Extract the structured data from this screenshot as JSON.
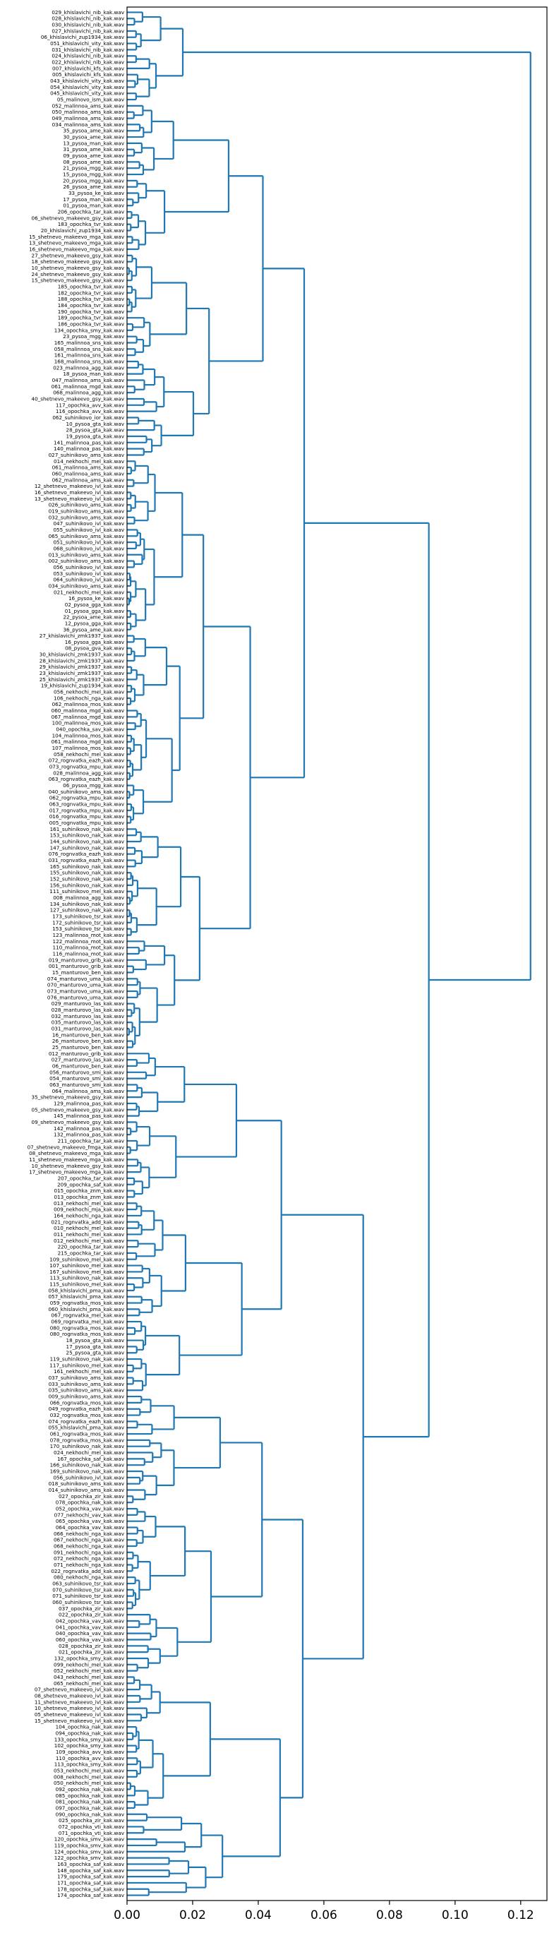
{
  "chart_data": {
    "type": "dendrogram",
    "orientation": "horizontal",
    "xlim": [
      0,
      0.128
    ],
    "xticks": [
      "0.00",
      "0.02",
      "0.04",
      "0.06",
      "0.08",
      "0.10",
      "0.12"
    ],
    "tick_values": [
      0,
      0.02,
      0.04,
      0.06,
      0.08,
      0.1,
      0.12
    ],
    "color": "#1f77b4",
    "leaves": [
      "029_khislavichi_nib_kak.wav",
      "028_khislavichi_nib_kak.wav",
      "030_khislavichi_nib_kak.wav",
      "027_khislavichi_nib_kak.wav",
      "06_khislavichi_zup1934_kak.wav",
      "051_khislavichi_vity_kak.wav",
      "031_khislavichi_nib_kak.wav",
      "024_khislavichi_nib_kak.wav",
      "022_khislavichi_nib_kak.wav",
      "007_khislavichi_kfs_kak.wav",
      "005_khislavichi_kfs_kak.wav",
      "043_khislavichi_vity_kak.wav",
      "054_khislavichi_vity_kak.wav",
      "045_khislavichi_vity_kak.wav",
      "05_malinovo_ism_kak.wav",
      "052_malinnoa_ams_kak.wav",
      "050_malinnoa_ams_kak.wav",
      "049_malinnoa_ams_kak.wav",
      "034_malinnoa_ams_kak.wav",
      "35_pysoa_ame_kak.wav",
      "30_pysoa_ame_kak.wav",
      "13_pysoa_man_kak.wav",
      "31_pysoa_ame_kak.wav",
      "09_pysoa_ame_kak.wav",
      "08_pysoa_ame_kak.wav",
      "21_pysoa_mgg_kak.wav",
      "15_pysoa_mgg_kak.wav",
      "20_pysoa_mgg_kak.wav",
      "26_pysoa_ame_kak.wav",
      "33_pysoa_ke_kak.wav",
      "17_pysoa_man_kak.wav",
      "01_pysoa_man_kak.wav",
      "206_opochka_tar_kak.wav",
      "06_shetnevo_makeevo_gsy_kak.wav",
      "183_opochka_tvr_kak.wav",
      "20_khislavichi_zup1934_kak.wav",
      "15_shetnevo_makeevo_mga_kak.wav",
      "13_shetnevo_makeevo_mga_kak.wav",
      "16_shetnevo_makeevo_mga_kak.wav",
      "27_shetnevo_makeevo_gsy_kak.wav",
      "18_shetnevo_makeevo_gsy_kak.wav",
      "10_shetnevo_makeevo_gsy_kak.wav",
      "24_shetnevo_makeevo_gsy_kak.wav",
      "15_shetnevo_makeevo_gsy_kak.wav",
      "185_opochka_tvr_kak.wav",
      "182_opochka_tvr_kak.wav",
      "188_opochka_tvr_kak.wav",
      "184_opochka_tvr_kak.wav",
      "190_opochka_tvr_kak.wav",
      "189_opochka_tvr_kak.wav",
      "186_opochka_tvr_kak.wav",
      "134_opochka_smy_kak.wav",
      "23_pysoa_mgg_kak.wav",
      "165_malinnoa_sns_kak.wav",
      "058_malinnoa_sns_kak.wav",
      "161_malinnoa_sns_kak.wav",
      "168_malinnoa_sns_kak.wav",
      "023_malinnoa_agg_kak.wav",
      "18_pysoa_man_kak.wav",
      "047_malinnoa_ams_kak.wav",
      "061_malinnoa_mgd_kak.wav",
      "068_malinnoa_agg_kak.wav",
      "40_shetnevo_makeevo_gsy_kak.wav",
      "117_opochka_avv_kak.wav",
      "116_opochka_avv_kak.wav",
      "062_suhinikovo_ior_kak.wav",
      "10_pysoa_gta_kak.wav",
      "28_pysoa_gta_kak.wav",
      "19_pysoa_gta_kak.wav",
      "141_malinnoa_pas_kak.wav",
      "140_malinnoa_pas_kak.wav",
      "027_suhinikovo_ams_kak.wav",
      "014_nekhochi_mel_kak.wav",
      "061_malinnoa_ams_kak.wav",
      "060_malinnoa_ams_kak.wav",
      "062_malinnoa_ams_kak.wav",
      "12_shetnevo_makeevo_ivl_kak.wav",
      "16_shetnevo_makeevo_ivl_kak.wav",
      "13_shetnevo_makeevo_ivl_kak.wav",
      "026_suhinikovo_ams_kak.wav",
      "019_suhinikovo_ams_kak.wav",
      "032_suhinikovo_ams_kak.wav",
      "047_suhinikovo_ivl_kak.wav",
      "055_suhinikovo_ivl_kak.wav",
      "065_suhinikovo_ams_kak.wav",
      "051_suhinikovo_ivl_kak.wav",
      "068_suhinikovo_ivl_kak.wav",
      "013_suhinikovo_ams_kak.wav",
      "002_suhinikovo_ams_kak.wav",
      "056_suhinikovo_ivl_kak.wav",
      "053_suhinikovo_ivl_kak.wav",
      "064_suhinikovo_ivl_kak.wav",
      "034_suhinikovo_ams_kak.wav",
      "021_nekhochi_mel_kak.wav",
      "16_pysoa_ke_kak.wav",
      "02_pysoa_gga_kak.wav",
      "01_pysoa_gga_kak.wav",
      "22_pysoa_ame_kak.wav",
      "12_pysoa_gga_kak.wav",
      "36_pysoa_ame_kak.wav",
      "27_khislavichi_zmk1937_kak.wav",
      "16_pysoa_gga_kak.wav",
      "08_pysoa_gva_kak.wav",
      "30_khislavichi_zmk1937_kak.wav",
      "28_khislavichi_zmk1937_kak.wav",
      "29_khislavichi_zmk1937_kak.wav",
      "23_khislavichi_zmk1937_kak.wav",
      "25_khislavichi_zmk1937_kak.wav",
      "19_khislavichi_zup1934_kak.wav",
      "056_nekhochi_mel_kak.wav",
      "106_nekhochi_nga_kak.wav",
      "062_malinnoa_mos_kak.wav",
      "060_malinnoa_mgd_kak.wav",
      "067_malinnoa_mgd_kak.wav",
      "100_malinnoa_mos_kak.wav",
      "040_opochka_sav_kak.wav",
      "104_malinnoa_mos_kak.wav",
      "061_malinnoa_mgd_kak.wav",
      "107_malinnoa_mos_kak.wav",
      "058_nekhochi_mel_kak.wav",
      "072_rognvatka_eazh_kak.wav",
      "073_rognvatka_mpu_kak.wav",
      "028_malinnoa_agg_kak.wav",
      "063_rognvatka_eazh_kak.wav",
      "06_pysoa_mgg_kak.wav",
      "040_suhinikovo_ams_kak.wav",
      "062_rognvatka_mpu_kak.wav",
      "063_rognvatka_mpu_kak.wav",
      "017_rognvatka_mpu_kak.wav",
      "016_rognvatka_mpu_kak.wav",
      "005_rognvatka_mpu_kak.wav",
      "161_suhinikovo_nak_kak.wav",
      "153_suhinikovo_nak_kak.wav",
      "144_suhinikovo_nak_kak.wav",
      "147_suhinikovo_nak_kak.wav",
      "076_rognvatka_eazh_kak.wav",
      "031_rognvatka_eazh_kak.wav",
      "165_suhinikovo_nak_kak.wav",
      "155_suhinikovo_nak_kak.wav",
      "152_suhinikovo_nak_kak.wav",
      "156_suhinikovo_nak_kak.wav",
      "111_suhinikovo_mel_kak.wav",
      "008_malinnoa_agg_kak.wav",
      "134_suhinikovo_nak_kak.wav",
      "127_suhinikovo_nak_kak.wav",
      "173_suhinikovo_tsr_kak.wav",
      "172_suhinikovo_tsr_kak.wav",
      "153_suhinikovo_tsr_kak.wav",
      "123_malinnoa_mot_kak.wav",
      "122_malinnoa_mot_kak.wav",
      "110_malinnoa_mot_kak.wav",
      "116_malinnoa_mot_kak.wav",
      "019_manturovo_grib_kak.wav",
      "001_manturovo_grib_kak.wav",
      "15_manturovo_ben_kak.wav",
      "074_manturovo_uma_kak.wav",
      "070_manturovo_uma_kak.wav",
      "073_manturovo_uma_kak.wav",
      "076_manturovo_uma_kak.wav",
      "029_manturovo_las_kak.wav",
      "028_manturovo_las_kak.wav",
      "032_manturovo_las_kak.wav",
      "035_manturovo_las_kak.wav",
      "031_manturovo_las_kak.wav",
      "16_manturovo_ben_kak.wav",
      "26_manturovo_ben_kak.wav",
      "25_manturovo_ben_kak.wav",
      "012_manturovo_grib_kak.wav",
      "027_manturovo_las_kak.wav",
      "06_manturovo_ben_kak.wav",
      "056_manturovo_smi_kak.wav",
      "054_manturovo_smi_kak.wav",
      "063_manturovo_smi_kak.wav",
      "064_malinnoa_ams_kak.wav",
      "35_shetnevo_makeevo_gsy_kak.wav",
      "129_malinnoa_pas_kak.wav",
      "05_shetnevo_makeevo_gsy_kak.wav",
      "145_malinnoa_pas_kak.wav",
      "09_shetnevo_makeevo_gsy_kak.wav",
      "142_malinnoa_pas_kak.wav",
      "132_malinnoa_pas_kak.wav",
      "211_opochka_tar_kak.wav",
      "07_shetnevo_makeevo_fmga_kak.wav",
      "08_shetnevo_makeevo_mga_kak.wav",
      "11_shetnevo_makeevo_mga_kak.wav",
      "10_shetnevo_makeevo_gsy_kak.wav",
      "17_shetnevo_makeevo_mga_kak.wav",
      "207_opochka_tar_kak.wav",
      "209_opochka_saf_kak.wav",
      "015_opochka_znm_kak.wav",
      "013_opochka_znm_kak.wav",
      "013_nekhochi_mel_kak.wav",
      "009_nekhochi_mja_kak.wav",
      "164_nekhochi_nga_kak.wav",
      "021_rognvatka_add_kak.wav",
      "010_nekhochi_mel_kak.wav",
      "011_nekhochi_mel_kak.wav",
      "012_nekhochi_mel_kak.wav",
      "220_opochka_tar_kak.wav",
      "215_opochka_tar_kak.wav",
      "109_suhinikovo_mel_kak.wav",
      "107_suhinikovo_mel_kak.wav",
      "167_suhinikovo_mel_kak.wav",
      "113_suhinikovo_nak_kak.wav",
      "115_suhinikovo_mel_kak.wav",
      "058_khislavichi_pma_kak.wav",
      "057_khislavichi_pma_kak.wav",
      "059_rognvatka_mos_kak.wav",
      "060_khislavichi_pma_kak.wav",
      "067_rognvatka_mel_kak.wav",
      "069_rognvatka_mel_kak.wav",
      "080_rognvatka_mos_kak.wav",
      "080_rognvatka_mos_kak.wav",
      "18_pysoa_gta_kak.wav",
      "17_pysoa_gta_kak.wav",
      "25_pysoa_gta_kak.wav",
      "119_suhinikovo_nak_kak.wav",
      "117_suhinikovo_mel_kak.wav",
      "161_nekhochi_mel_kak.wav",
      "037_suhinikovo_ams_kak.wav",
      "033_suhinikovo_ams_kak.wav",
      "035_suhinikovo_ams_kak.wav",
      "009_suhinikovo_ams_kak.wav",
      "066_rognvatka_mos_kak.wav",
      "049_rognvatka_eazh_kak.wav",
      "032_rognvatka_mos_kak.wav",
      "074_rognvatka_eazh_kak.wav",
      "055_khislavichi_pma_kak.wav",
      "061_rognvatka_mos_kak.wav",
      "078_rognvatka_mos_kak.wav",
      "170_suhinikovo_nak_kak.wav",
      "024_nekhochi_mel_kak.wav",
      "167_opochka_saf_kak.wav",
      "166_suhinikovo_nak_kak.wav",
      "169_suhinikovo_nak_kak.wav",
      "056_suhinikovo_ivl_kak.wav",
      "018_suhinikovo_ams_kak.wav",
      "014_suhinikovo_ams_kak.wav",
      "027_opochka_zir_kak.wav",
      "078_opochka_nak_kak.wav",
      "052_opochka_vav_kak.wav",
      "077_nekhochi_vav_kak.wav",
      "065_opochka_vav_kak.wav",
      "064_opochka_vav_kak.wav",
      "066_nekhochi_nga_kak.wav",
      "067_nekhochi_nga_kak.wav",
      "068_nekhochi_nga_kak.wav",
      "091_nekhochi_nga_kak.wav",
      "072_nekhochi_nga_kak.wav",
      "071_nekhochi_nga_kak.wav",
      "022_rognvatka_add_kak.wav",
      "080_nekhochi_nga_kak.wav",
      "063_suhinikovo_tsr_kak.wav",
      "070_suhinikovo_tsr_kak.wav",
      "071_suhinikovo_tsr_kak.wav",
      "060_suhinikovo_tsr_kak.wav",
      "037_opochka_zir_kak.wav",
      "022_opochka_zir_kak.wav",
      "042_opochka_vav_kak.wav",
      "041_opochka_vav_kak.wav",
      "040_opochka_vav_kak.wav",
      "060_opochka_vav_kak.wav",
      "028_opochka_zir_kak.wav",
      "021_opochka_zir_kak.wav",
      "132_opochka_smy_kak.wav",
      "099_nekhochi_mel_kak.wav",
      "052_nekhochi_mel_kak.wav",
      "043_nekhochi_mel_kak.wav",
      "065_nekhochi_mel_kak.wav",
      "07_shetnevo_makeevo_ivl_kak.wav",
      "08_shetnevo_makeevo_ivl_kak.wav",
      "11_shetnevo_makeevo_ivl_kak.wav",
      "10_shetnevo_makeevo_ivl_kak.wav",
      "05_shetnevo_makeevo_ivl_kak.wav",
      "15_shetnevo_makeevo_ivl_kak.wav",
      "104_opochka_nak_kak.wav",
      "094_opochka_nak_kak.wav",
      "133_opochka_smy_kak.wav",
      "102_opochka_smy_kak.wav",
      "109_opochka_avv_kak.wav",
      "110_opochka_avv_kak.wav",
      "113_opochka_smy_kak.wav",
      "053_nekhochi_mel_kak.wav",
      "008_nekhochi_mel_kak.wav",
      "050_nekhochi_mel_kak.wav",
      "092_opochka_nak_kak.wav",
      "085_opochka_nak_kak.wav",
      "081_opochka_nak_kak.wav",
      "097_opochka_nak_kak.wav",
      "090_opochka_nak_kak.wav",
      "025_opochka_zir_kak.wav",
      "072_opochka_vti_kak.wav",
      "071_opochka_vti_kak.wav",
      "120_opochka_smv_kak.wav",
      "119_opochka_smv_kak.wav",
      "124_opochka_smv_kak.wav",
      "122_opochka_smv_kak.wav",
      "163_opochka_saf_kak.wav",
      "148_opochka_saf_kak.wav",
      "179_opochka_saf_kak.wav",
      "171_opochka_saf_kak.wav",
      "178_opochka_saf_kak.wav",
      "174_opochka_saf_kak.wav"
    ]
  }
}
